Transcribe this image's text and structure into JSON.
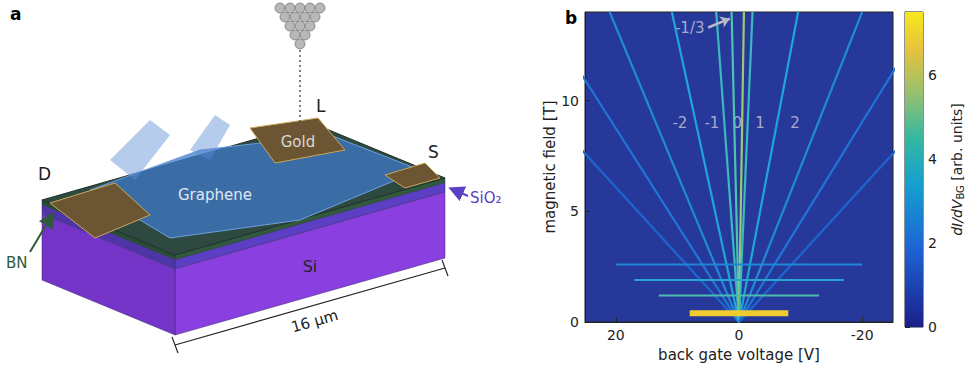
{
  "panel_labels": [
    "a",
    "b"
  ],
  "device": {
    "labels": {
      "probe": "L",
      "gold": "Gold",
      "source": "S",
      "drain": "D",
      "graphene": "Graphene",
      "oxide": "SiO₂",
      "bn": "BN",
      "substrate": "Si"
    },
    "dimension": "16 µm"
  },
  "chart_data": {
    "type": "line",
    "x_label": "back gate voltage [V]",
    "y_label": "magnetic field [T]",
    "xlim": [
      25,
      -25
    ],
    "xticks": [
      20,
      0,
      -20
    ],
    "ylim": [
      0,
      14
    ],
    "yticks": [
      0,
      5,
      10
    ],
    "grid": false,
    "series": [
      {
        "color": "#1c66d0",
        "values": [
          [
            0,
            0
          ],
          [
            46,
            14
          ]
        ]
      },
      {
        "color": "#1f76d6",
        "values": [
          [
            0,
            0
          ],
          [
            32,
            14
          ]
        ]
      },
      {
        "color": "#1f8ad8",
        "values": [
          [
            0,
            0
          ],
          [
            21,
            14
          ]
        ]
      },
      {
        "color": "#1fa6d8",
        "values": [
          [
            0,
            0
          ],
          [
            10.9,
            14
          ]
        ]
      },
      {
        "color": "#3bb8c0",
        "values": [
          [
            0,
            0
          ],
          [
            3.7,
            14
          ]
        ]
      },
      {
        "color": "#4ec1b0",
        "values": [
          [
            0,
            0
          ],
          [
            1.2,
            14
          ]
        ]
      },
      {
        "color": "#9cc870",
        "values": [
          [
            0,
            0
          ],
          [
            -0.8,
            14
          ]
        ]
      },
      {
        "color": "#3bb8c0",
        "values": [
          [
            0,
            0
          ],
          [
            -2.2,
            14
          ]
        ]
      },
      {
        "color": "#1fa6d8",
        "values": [
          [
            0,
            0
          ],
          [
            -9.6,
            14
          ]
        ]
      },
      {
        "color": "#1f8ad8",
        "values": [
          [
            0,
            0
          ],
          [
            -20,
            14
          ]
        ]
      },
      {
        "color": "#1f76d6",
        "values": [
          [
            0,
            0
          ],
          [
            -31,
            14
          ]
        ]
      },
      {
        "color": "#1c66d0",
        "values": [
          [
            0,
            0
          ],
          [
            -46,
            14
          ]
        ]
      },
      {
        "color": "#1f86d8",
        "values": [
          [
            20,
            2.6
          ],
          [
            -20,
            2.6
          ]
        ]
      },
      {
        "color": "#2aa4d2",
        "values": [
          [
            17,
            1.9
          ],
          [
            -17,
            1.9
          ]
        ]
      },
      {
        "color": "#4cbcb0",
        "values": [
          [
            13,
            1.2
          ],
          [
            -13,
            1.2
          ]
        ]
      },
      {
        "color": "#f0cc30",
        "values": [
          [
            8,
            0.4
          ],
          [
            -8,
            0.4
          ]
        ]
      }
    ],
    "annotations": [
      {
        "text": "-2",
        "x": 9.6,
        "y": 9
      },
      {
        "text": "-1",
        "x": 4.4,
        "y": 9
      },
      {
        "text": "0",
        "x": 0.3,
        "y": 9
      },
      {
        "text": "1",
        "x": -3.4,
        "y": 9
      },
      {
        "text": "2",
        "x": -9.1,
        "y": 9
      },
      {
        "text": "-1/3",
        "x": 8,
        "y": 13.3,
        "arrow": [
          [
            5,
            13.3
          ],
          [
            1.5,
            13.7
          ]
        ]
      }
    ],
    "colorbar": {
      "label": [
        "dI/dV",
        "BG",
        " [arb. units]"
      ],
      "range": [
        0,
        7.5
      ],
      "ticks": [
        0,
        2,
        4,
        6
      ]
    }
  }
}
